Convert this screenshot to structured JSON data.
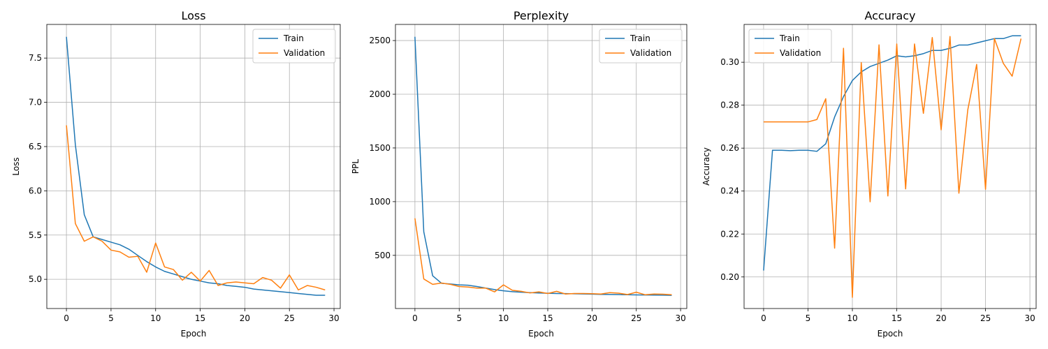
{
  "figure": {
    "background": "#ffffff",
    "grid_color": "#b0b0b0",
    "series_colors": {
      "Train": "#1f77b4",
      "Validation": "#ff7f0e"
    }
  },
  "chart_data": [
    {
      "type": "line",
      "title": "Loss",
      "xlabel": "Epoch",
      "ylabel": "Loss",
      "grid": true,
      "legend": "top-right",
      "xlim": [
        -2.2,
        30.7
      ],
      "ylim": [
        4.67,
        7.88
      ],
      "xticks": [
        0,
        5,
        10,
        15,
        20,
        25,
        30
      ],
      "yticks": [
        5.0,
        5.5,
        6.0,
        6.5,
        7.0,
        7.5
      ],
      "ytick_labels": [
        "5.0",
        "5.5",
        "6.0",
        "6.5",
        "7.0",
        "7.5"
      ],
      "x": [
        0,
        1,
        2,
        3,
        4,
        5,
        6,
        7,
        8,
        9,
        10,
        11,
        12,
        13,
        14,
        15,
        16,
        17,
        18,
        19,
        20,
        21,
        22,
        23,
        24,
        25,
        26,
        27,
        28,
        29
      ],
      "series": [
        {
          "name": "Train",
          "values": [
            7.74,
            6.52,
            5.73,
            5.48,
            5.45,
            5.42,
            5.39,
            5.34,
            5.27,
            5.2,
            5.14,
            5.09,
            5.06,
            5.03,
            5.0,
            4.98,
            4.96,
            4.95,
            4.93,
            4.92,
            4.91,
            4.89,
            4.88,
            4.87,
            4.86,
            4.85,
            4.84,
            4.83,
            4.82,
            4.82
          ]
        },
        {
          "name": "Validation",
          "values": [
            6.74,
            5.63,
            5.43,
            5.48,
            5.43,
            5.33,
            5.31,
            5.25,
            5.26,
            5.08,
            5.41,
            5.14,
            5.11,
            4.99,
            5.08,
            4.98,
            5.1,
            4.93,
            4.96,
            4.97,
            4.96,
            4.95,
            5.02,
            4.99,
            4.9,
            5.05,
            4.88,
            4.93,
            4.91,
            4.88
          ]
        }
      ]
    },
    {
      "type": "line",
      "title": "Perplexity",
      "xlabel": "Epoch",
      "ylabel": "PPL",
      "grid": true,
      "legend": "top-right",
      "xlim": [
        -2.2,
        30.7
      ],
      "ylim": [
        5,
        2650
      ],
      "xticks": [
        0,
        5,
        10,
        15,
        20,
        25,
        30
      ],
      "yticks": [
        500,
        1000,
        1500,
        2000,
        2500
      ],
      "ytick_labels": [
        "500",
        "1000",
        "1500",
        "2000",
        "2500"
      ],
      "x": [
        0,
        1,
        2,
        3,
        4,
        5,
        6,
        7,
        8,
        9,
        10,
        11,
        12,
        13,
        14,
        15,
        16,
        17,
        18,
        19,
        20,
        21,
        22,
        23,
        24,
        25,
        26,
        27,
        28,
        29
      ],
      "series": [
        {
          "name": "Train",
          "values": [
            2535,
            720,
            310,
            240,
            233,
            225,
            222,
            210,
            195,
            181,
            170,
            162,
            157,
            153,
            150,
            147,
            145,
            144,
            142,
            141,
            139,
            137,
            136,
            135,
            133,
            132,
            131,
            130,
            129,
            128
          ]
        },
        {
          "name": "Validation",
          "values": [
            845,
            280,
            230,
            242,
            230,
            210,
            205,
            195,
            195,
            160,
            225,
            175,
            165,
            150,
            160,
            145,
            165,
            140,
            145,
            145,
            143,
            140,
            153,
            148,
            135,
            157,
            133,
            140,
            138,
            133
          ]
        }
      ]
    },
    {
      "type": "line",
      "title": "Accuracy",
      "xlabel": "Epoch",
      "ylabel": "Accuracy",
      "grid": true,
      "legend": "top-left",
      "xlim": [
        -2.2,
        30.7
      ],
      "ylim": [
        0.1853,
        0.3176
      ],
      "xticks": [
        0,
        5,
        10,
        15,
        20,
        25,
        30
      ],
      "yticks": [
        0.2,
        0.22,
        0.24,
        0.26,
        0.28,
        0.3
      ],
      "ytick_labels": [
        "0.20",
        "0.22",
        "0.24",
        "0.26",
        "0.28",
        "0.30"
      ],
      "x": [
        0,
        1,
        2,
        3,
        4,
        5,
        6,
        7,
        8,
        9,
        10,
        11,
        12,
        13,
        14,
        15,
        16,
        17,
        18,
        19,
        20,
        21,
        22,
        23,
        24,
        25,
        26,
        27,
        28,
        29
      ],
      "series": [
        {
          "name": "Train",
          "values": [
            0.203,
            0.259,
            0.259,
            0.2588,
            0.259,
            0.259,
            0.2585,
            0.262,
            0.2745,
            0.284,
            0.2915,
            0.2955,
            0.298,
            0.2995,
            0.301,
            0.303,
            0.3025,
            0.303,
            0.304,
            0.3055,
            0.3055,
            0.3065,
            0.308,
            0.308,
            0.309,
            0.31,
            0.311,
            0.311,
            0.3123,
            0.3123
          ]
        },
        {
          "name": "Validation",
          "values": [
            0.2722,
            0.2722,
            0.2722,
            0.2722,
            0.2722,
            0.2722,
            0.2733,
            0.283,
            0.2134,
            0.3065,
            0.1905,
            0.2998,
            0.235,
            0.3081,
            0.2377,
            0.3085,
            0.241,
            0.3085,
            0.2762,
            0.3115,
            0.2685,
            0.312,
            0.239,
            0.2778,
            0.299,
            0.2408,
            0.311,
            0.2995,
            0.2935,
            0.311
          ]
        }
      ]
    }
  ]
}
